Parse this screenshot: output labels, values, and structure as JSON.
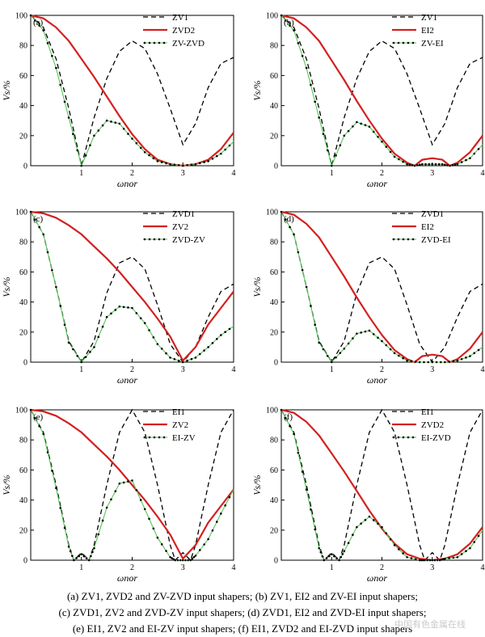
{
  "chart_data": [
    {
      "type": "line",
      "panel": "(a)",
      "xlabel": "ωnor",
      "ylabel": "Vs/%",
      "xlim": [
        0,
        4
      ],
      "ylim": [
        0,
        100
      ],
      "xticks": [
        "1",
        "2",
        "3",
        "4"
      ],
      "yticks": [
        "0",
        "20",
        "40",
        "60",
        "80",
        "100"
      ],
      "legend_position": "top-right",
      "series": [
        {
          "name": "ZV1",
          "style": "dashed",
          "color": "#000000",
          "x": [
            0,
            0.25,
            0.5,
            0.75,
            1.0,
            1.25,
            1.5,
            1.75,
            2.0,
            2.25,
            2.5,
            2.75,
            3.0,
            3.25,
            3.5,
            3.75,
            4.0
          ],
          "y": [
            100,
            92,
            71,
            38,
            0,
            32,
            58,
            76,
            83,
            78,
            61,
            38,
            14,
            28,
            52,
            68,
            72
          ]
        },
        {
          "name": "ZVD2",
          "style": "solid",
          "color": "#d42020",
          "x": [
            0,
            0.25,
            0.5,
            0.75,
            1.0,
            1.25,
            1.5,
            1.75,
            2.0,
            2.25,
            2.5,
            2.75,
            3.0,
            3.25,
            3.5,
            3.75,
            4.0
          ],
          "y": [
            100,
            98,
            92,
            83,
            71,
            59,
            46,
            33,
            21,
            11,
            4,
            1,
            0,
            1,
            4,
            11,
            22
          ]
        },
        {
          "name": "ZV-ZVD",
          "style": "dotted-green",
          "color": "#1a8a1a",
          "x": [
            0,
            0.25,
            0.5,
            0.75,
            1.0,
            1.25,
            1.5,
            1.75,
            2.0,
            2.25,
            2.5,
            2.75,
            3.0,
            3.25,
            3.5,
            3.75,
            4.0
          ],
          "y": [
            100,
            90,
            65,
            32,
            0,
            20,
            30,
            28,
            18,
            9,
            3,
            1,
            0,
            1,
            3,
            8,
            16
          ]
        }
      ]
    },
    {
      "type": "line",
      "panel": "(b)",
      "xlabel": "ωnor",
      "ylabel": "Vs/%",
      "xlim": [
        0,
        4
      ],
      "ylim": [
        0,
        100
      ],
      "xticks": [
        "1",
        "2",
        "3",
        "4"
      ],
      "yticks": [
        "0",
        "20",
        "40",
        "60",
        "80",
        "100"
      ],
      "legend_position": "top-right",
      "series": [
        {
          "name": "ZV1",
          "style": "dashed",
          "color": "#000000",
          "x": [
            0,
            0.25,
            0.5,
            0.75,
            1.0,
            1.25,
            1.5,
            1.75,
            2.0,
            2.25,
            2.5,
            2.75,
            3.0,
            3.25,
            3.5,
            3.75,
            4.0
          ],
          "y": [
            100,
            92,
            71,
            38,
            0,
            32,
            58,
            76,
            83,
            78,
            61,
            38,
            14,
            28,
            52,
            68,
            72
          ]
        },
        {
          "name": "EI2",
          "style": "solid",
          "color": "#d42020",
          "x": [
            0,
            0.25,
            0.5,
            0.75,
            1.0,
            1.25,
            1.5,
            1.75,
            2.0,
            2.25,
            2.5,
            2.65,
            2.8,
            3.0,
            3.2,
            3.35,
            3.5,
            3.75,
            4.0
          ],
          "y": [
            100,
            98,
            92,
            83,
            70,
            57,
            43,
            30,
            18,
            8,
            2,
            0,
            4,
            5,
            4,
            0,
            2,
            9,
            20
          ]
        },
        {
          "name": "ZV-EI",
          "style": "dotted-green",
          "color": "#1a8a1a",
          "x": [
            0,
            0.25,
            0.5,
            0.75,
            1.0,
            1.25,
            1.5,
            1.75,
            2.0,
            2.25,
            2.5,
            2.65,
            2.8,
            3.0,
            3.2,
            3.35,
            3.5,
            3.75,
            4.0
          ],
          "y": [
            100,
            90,
            65,
            32,
            0,
            20,
            29,
            26,
            16,
            6,
            1,
            0,
            1,
            1,
            1,
            0,
            1,
            5,
            14
          ]
        }
      ]
    },
    {
      "type": "line",
      "panel": "(c)",
      "xlabel": "ωnor",
      "ylabel": "Vs/%",
      "xlim": [
        0,
        4
      ],
      "ylim": [
        0,
        100
      ],
      "xticks": [
        "1",
        "2",
        "3",
        "4"
      ],
      "yticks": [
        "0",
        "20",
        "40",
        "60",
        "80",
        "100"
      ],
      "legend_position": "top-right",
      "series": [
        {
          "name": "ZVD1",
          "style": "dashed",
          "color": "#000000",
          "x": [
            0,
            0.25,
            0.5,
            0.75,
            1.0,
            1.25,
            1.5,
            1.75,
            2.0,
            2.25,
            2.5,
            2.75,
            3.0,
            3.25,
            3.5,
            3.75,
            4.0
          ],
          "y": [
            100,
            85,
            50,
            14,
            0,
            14,
            46,
            66,
            70,
            62,
            38,
            12,
            0,
            10,
            30,
            47,
            52
          ]
        },
        {
          "name": "ZV2",
          "style": "solid",
          "color": "#d42020",
          "x": [
            0,
            0.25,
            0.5,
            0.75,
            1.0,
            1.25,
            1.5,
            1.75,
            2.0,
            2.25,
            2.5,
            2.75,
            3.0,
            3.25,
            3.5,
            3.75,
            4.0
          ],
          "y": [
            100,
            99,
            96,
            91,
            85,
            77,
            69,
            60,
            50,
            40,
            29,
            17,
            1,
            10,
            25,
            36,
            47
          ]
        },
        {
          "name": "ZVD-ZV",
          "style": "dotted-green",
          "color": "#1a8a1a",
          "x": [
            0,
            0.25,
            0.5,
            0.75,
            1.0,
            1.25,
            1.5,
            1.75,
            2.0,
            2.25,
            2.5,
            2.75,
            3.0,
            3.25,
            3.5,
            3.75,
            4.0
          ],
          "y": [
            100,
            85,
            50,
            13,
            0,
            10,
            30,
            37,
            36,
            26,
            12,
            3,
            0,
            3,
            10,
            18,
            24
          ]
        }
      ]
    },
    {
      "type": "line",
      "panel": "(d)",
      "xlabel": "ωnor",
      "ylabel": "Vs/%",
      "xlim": [
        0,
        4
      ],
      "ylim": [
        0,
        100
      ],
      "xticks": [
        "1",
        "2",
        "3",
        "4"
      ],
      "yticks": [
        "0",
        "20",
        "40",
        "60",
        "80",
        "100"
      ],
      "legend_position": "top-right",
      "series": [
        {
          "name": "ZVD1",
          "style": "dashed",
          "color": "#000000",
          "x": [
            0,
            0.25,
            0.5,
            0.75,
            1.0,
            1.25,
            1.5,
            1.75,
            2.0,
            2.25,
            2.5,
            2.75,
            3.0,
            3.25,
            3.5,
            3.75,
            4.0
          ],
          "y": [
            100,
            85,
            50,
            14,
            0,
            14,
            46,
            66,
            70,
            62,
            38,
            12,
            0,
            10,
            30,
            47,
            52
          ]
        },
        {
          "name": "EI2",
          "style": "solid",
          "color": "#d42020",
          "x": [
            0,
            0.25,
            0.5,
            0.75,
            1.0,
            1.25,
            1.5,
            1.75,
            2.0,
            2.25,
            2.5,
            2.65,
            2.8,
            3.0,
            3.2,
            3.35,
            3.5,
            3.75,
            4.0
          ],
          "y": [
            100,
            98,
            92,
            83,
            70,
            57,
            43,
            30,
            18,
            8,
            2,
            0,
            4,
            5,
            4,
            0,
            2,
            9,
            20
          ]
        },
        {
          "name": "ZVD-EI",
          "style": "dotted-green",
          "color": "#1a8a1a",
          "x": [
            0,
            0.25,
            0.5,
            0.75,
            1.0,
            1.25,
            1.5,
            1.75,
            2.0,
            2.25,
            2.5,
            2.75,
            3.0,
            3.25,
            3.5,
            3.75,
            4.0
          ],
          "y": [
            100,
            85,
            50,
            13,
            0,
            9,
            19,
            21,
            14,
            6,
            1,
            0,
            0,
            0,
            1,
            4,
            10
          ]
        }
      ]
    },
    {
      "type": "line",
      "panel": "(e)",
      "xlabel": "ωnor",
      "ylabel": "Vs/%",
      "xlim": [
        0,
        4
      ],
      "ylim": [
        0,
        100
      ],
      "xticks": [
        "1",
        "2",
        "3",
        "4"
      ],
      "yticks": [
        "0",
        "20",
        "40",
        "60",
        "80",
        "100"
      ],
      "legend_position": "top-right",
      "series": [
        {
          "name": "EI1",
          "style": "dashed",
          "color": "#000000",
          "x": [
            0,
            0.25,
            0.5,
            0.75,
            0.85,
            1.0,
            1.15,
            1.25,
            1.5,
            1.75,
            2.0,
            2.25,
            2.5,
            2.75,
            2.85,
            3.0,
            3.15,
            3.25,
            3.5,
            3.75,
            4.0
          ],
          "y": [
            100,
            85,
            50,
            10,
            0,
            5,
            0,
            10,
            50,
            85,
            100,
            85,
            50,
            10,
            0,
            5,
            0,
            10,
            50,
            85,
            100
          ]
        },
        {
          "name": "ZV2",
          "style": "solid",
          "color": "#d42020",
          "x": [
            0,
            0.25,
            0.5,
            0.75,
            1.0,
            1.25,
            1.5,
            1.75,
            2.0,
            2.25,
            2.5,
            2.75,
            3.0,
            3.25,
            3.5,
            3.75,
            4.0
          ],
          "y": [
            100,
            99,
            96,
            91,
            85,
            77,
            69,
            60,
            50,
            40,
            29,
            17,
            1,
            10,
            25,
            36,
            47
          ]
        },
        {
          "name": "EI-ZV",
          "style": "dotted-green",
          "color": "#1a8a1a",
          "x": [
            0,
            0.25,
            0.5,
            0.75,
            0.85,
            1.0,
            1.15,
            1.25,
            1.5,
            1.75,
            2.0,
            2.25,
            2.5,
            2.75,
            2.85,
            3.0,
            3.15,
            3.25,
            3.5,
            3.75,
            4.0
          ],
          "y": [
            100,
            84,
            48,
            9,
            0,
            4,
            0,
            8,
            35,
            51,
            53,
            34,
            15,
            2,
            0,
            0,
            0,
            3,
            14,
            31,
            47
          ]
        }
      ]
    },
    {
      "type": "line",
      "panel": "(f)",
      "xlabel": "ωnor",
      "ylabel": "Vs/%",
      "xlim": [
        0,
        4
      ],
      "ylim": [
        0,
        100
      ],
      "xticks": [
        "1",
        "2",
        "3",
        "4"
      ],
      "yticks": [
        "0",
        "20",
        "40",
        "60",
        "80",
        "100"
      ],
      "legend_position": "top-right",
      "series": [
        {
          "name": "EI1",
          "style": "dashed",
          "color": "#000000",
          "x": [
            0,
            0.25,
            0.5,
            0.75,
            0.85,
            1.0,
            1.15,
            1.25,
            1.5,
            1.75,
            2.0,
            2.25,
            2.5,
            2.75,
            2.85,
            3.0,
            3.15,
            3.25,
            3.5,
            3.75,
            4.0
          ],
          "y": [
            100,
            85,
            50,
            10,
            0,
            5,
            0,
            10,
            50,
            85,
            100,
            85,
            50,
            10,
            0,
            5,
            0,
            10,
            50,
            85,
            100
          ]
        },
        {
          "name": "ZVD2",
          "style": "solid",
          "color": "#d42020",
          "x": [
            0,
            0.25,
            0.5,
            0.75,
            1.0,
            1.25,
            1.5,
            1.75,
            2.0,
            2.25,
            2.5,
            2.75,
            3.0,
            3.25,
            3.5,
            3.75,
            4.0
          ],
          "y": [
            100,
            98,
            92,
            83,
            71,
            59,
            46,
            33,
            21,
            11,
            4,
            1,
            0,
            1,
            4,
            11,
            22
          ]
        },
        {
          "name": "EI-ZVD",
          "style": "dotted-green",
          "color": "#1a8a1a",
          "x": [
            0,
            0.25,
            0.5,
            0.75,
            0.85,
            1.0,
            1.15,
            1.25,
            1.5,
            1.75,
            2.0,
            2.25,
            2.5,
            2.75,
            2.85,
            3.0,
            3.15,
            3.25,
            3.5,
            3.75,
            4.0
          ],
          "y": [
            100,
            84,
            47,
            8,
            0,
            4,
            0,
            6,
            22,
            29,
            22,
            10,
            2,
            0,
            0,
            0,
            0,
            1,
            2,
            8,
            20
          ]
        }
      ]
    }
  ],
  "caption": {
    "line1": "(a) ZV1, ZVD2 and ZV-ZVD input shapers; (b) ZV1, EI2 and ZV-EI input shapers;",
    "line2": "(c) ZVD1, ZV2 and ZVD-ZV input shapers; (d) ZVD1, EI2 and ZVD-EI input shapers;",
    "line3": "(e) EI1, ZV2 and EI-ZV input shapers; (f) EI1, ZVD2 and EI-ZVD input shapers"
  },
  "watermark": "中国有色金属在线",
  "colors": {
    "dashed": "#000000",
    "solid": "#d42020",
    "green": "#1a8a1a",
    "marker": "#000000"
  }
}
